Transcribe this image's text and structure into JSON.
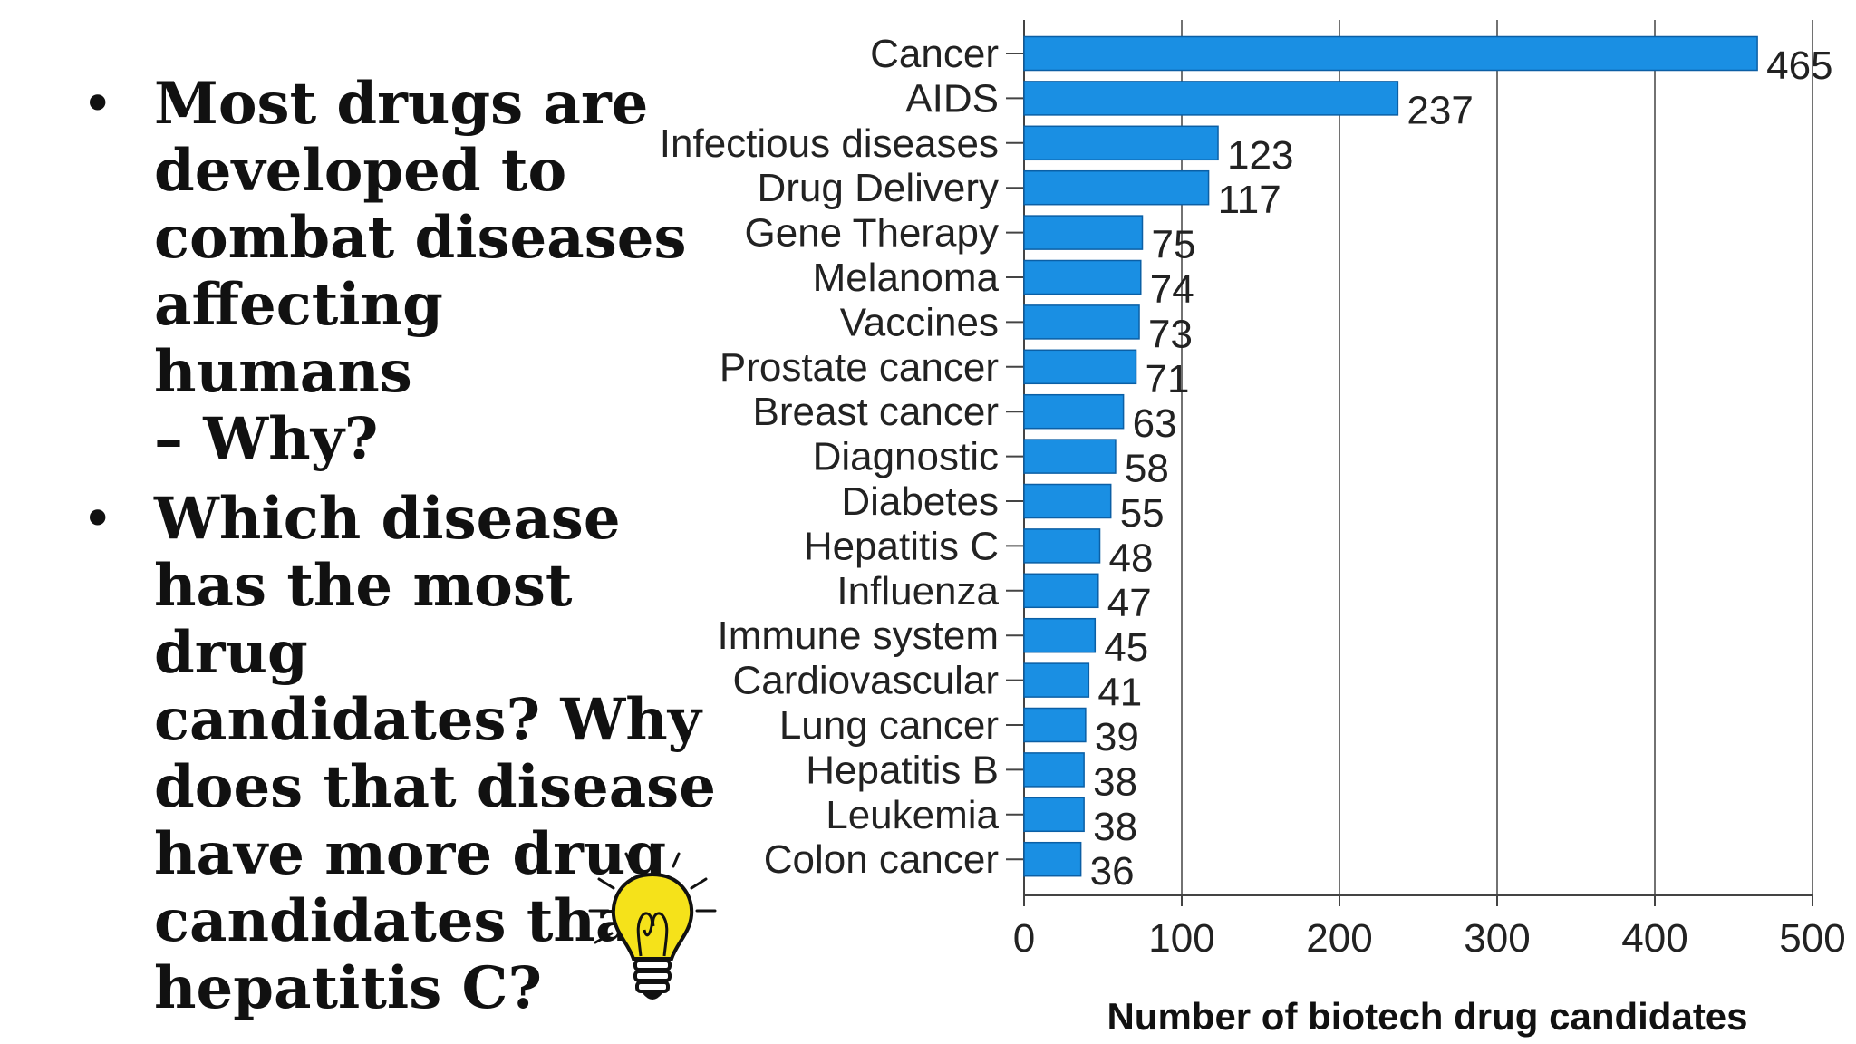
{
  "bullets": [
    "Most drugs are\ndeveloped to\ncombat diseases\naffecting humans\n– Why?",
    "Which disease\nhas the most drug\ncandidates? Why\ndoes that disease\nhave more drug\ncandidates than\nhepatitis C?"
  ],
  "bullet_symbol": "•",
  "icon": "lightbulb-icon",
  "chart_data": {
    "type": "bar",
    "orientation": "horizontal",
    "categories": [
      "Cancer",
      "AIDS",
      "Infectious diseases",
      "Drug Delivery",
      "Gene Therapy",
      "Melanoma",
      "Vaccines",
      "Prostate cancer",
      "Breast cancer",
      "Diagnostic",
      "Diabetes",
      "Hepatitis C",
      "Influenza",
      "Immune system",
      "Cardiovascular",
      "Lung cancer",
      "Hepatitis B",
      "Leukemia",
      "Colon cancer"
    ],
    "values": [
      465,
      237,
      123,
      117,
      75,
      74,
      73,
      71,
      63,
      58,
      55,
      48,
      47,
      45,
      41,
      39,
      38,
      38,
      36
    ],
    "xlabel": "Number of biotech drug candidates",
    "ylabel": "",
    "xlim": [
      0,
      500
    ],
    "xticks": [
      0,
      100,
      200,
      300,
      400,
      500
    ],
    "grid": "vertical",
    "bar_color": "#1a8fe3",
    "data_labels": true
  }
}
